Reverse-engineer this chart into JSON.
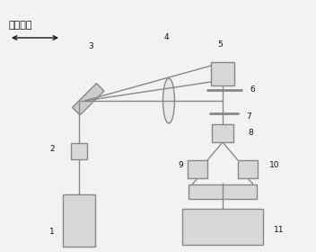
{
  "bg_color": "#f2f2f2",
  "line_color": "#888888",
  "box_face": "#d8d8d8",
  "text_color": "#111111",
  "title_zh": "前后移动",
  "lw": 1.0,
  "fs": 6.5
}
